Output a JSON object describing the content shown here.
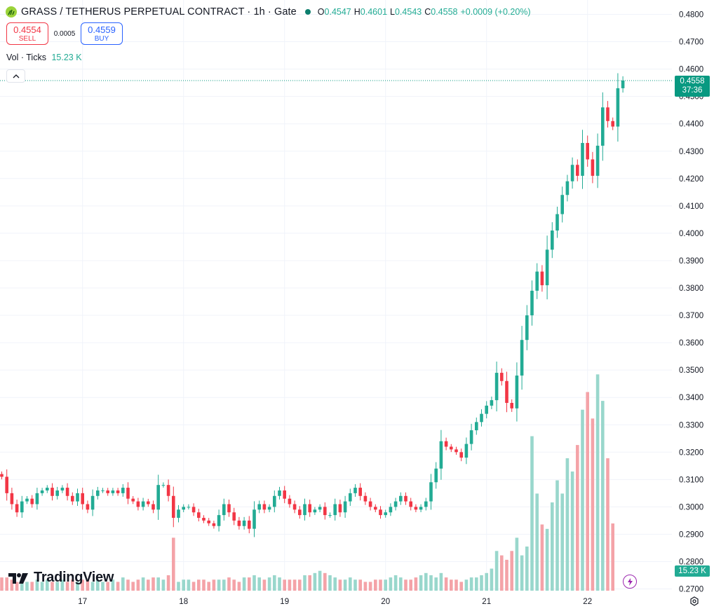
{
  "header": {
    "title": "GRASS / TETHERUS PERPETUAL CONTRACT · 1h · Gate",
    "ohlc": [
      {
        "k": "O",
        "v": "0.4547"
      },
      {
        "k": "H",
        "v": "0.4601"
      },
      {
        "k": "L",
        "v": "0.4543"
      },
      {
        "k": "C",
        "v": "0.4558"
      }
    ],
    "change": "+0.0009 (+0.20%)"
  },
  "trade": {
    "sell_price": "0.4554",
    "sell_label": "SELL",
    "spread": "0.0005",
    "buy_price": "0.4559",
    "buy_label": "BUY"
  },
  "volume": {
    "label": "Vol · Ticks",
    "value": "15.23 K"
  },
  "last_price": {
    "price": "0.4558",
    "countdown": "37:36"
  },
  "logo_text": "TradingView",
  "colors": {
    "up": "#22ab94",
    "down": "#f23645",
    "vol_up": "#99d7cc",
    "vol_down": "#f4a3a8",
    "accent": "#089981"
  },
  "icons": {
    "symbol": "grass-leaf-icon",
    "collapse": "chevron-up-icon",
    "bolt": "lightning-icon",
    "settings": "gear-icon"
  },
  "chart_data": {
    "type": "candlestick",
    "interval": "1h",
    "y_ticks": [
      "0.4800",
      "0.4700",
      "0.4600",
      "0.4500",
      "0.4400",
      "0.4300",
      "0.4200",
      "0.4100",
      "0.4000",
      "0.3900",
      "0.3800",
      "0.3700",
      "0.3600",
      "0.3500",
      "0.3400",
      "0.3300",
      "0.3200",
      "0.3100",
      "0.3000",
      "0.2900",
      "0.2800",
      "0.2700"
    ],
    "ylim": [
      0.27,
      0.48
    ],
    "x_ticks": [
      {
        "label": "17",
        "bar": 16
      },
      {
        "label": "18",
        "bar": 36
      },
      {
        "label": "19",
        "bar": 56
      },
      {
        "label": "20",
        "bar": 76
      },
      {
        "label": "21",
        "bar": 96
      },
      {
        "label": "22",
        "bar": 116
      }
    ],
    "grid": true,
    "closes": [
      0.311,
      0.305,
      0.301,
      0.298,
      0.302,
      0.303,
      0.301,
      0.305,
      0.306,
      0.307,
      0.304,
      0.306,
      0.307,
      0.304,
      0.302,
      0.305,
      0.301,
      0.299,
      0.304,
      0.306,
      0.306,
      0.305,
      0.306,
      0.305,
      0.307,
      0.303,
      0.302,
      0.3,
      0.302,
      0.301,
      0.299,
      0.308,
      0.308,
      0.304,
      0.296,
      0.299,
      0.3,
      0.3,
      0.298,
      0.296,
      0.295,
      0.294,
      0.293,
      0.297,
      0.301,
      0.298,
      0.295,
      0.293,
      0.295,
      0.292,
      0.299,
      0.301,
      0.299,
      0.3,
      0.304,
      0.306,
      0.303,
      0.301,
      0.299,
      0.297,
      0.301,
      0.298,
      0.299,
      0.3,
      0.297,
      0.297,
      0.301,
      0.298,
      0.302,
      0.305,
      0.307,
      0.304,
      0.302,
      0.3,
      0.299,
      0.297,
      0.298,
      0.3,
      0.302,
      0.304,
      0.302,
      0.3,
      0.299,
      0.3,
      0.302,
      0.309,
      0.314,
      0.324,
      0.322,
      0.321,
      0.32,
      0.318,
      0.323,
      0.328,
      0.331,
      0.334,
      0.337,
      0.339,
      0.349,
      0.346,
      0.338,
      0.336,
      0.348,
      0.361,
      0.37,
      0.379,
      0.386,
      0.381,
      0.394,
      0.401,
      0.407,
      0.414,
      0.419,
      0.425,
      0.421,
      0.433,
      0.427,
      0.421,
      0.432,
      0.446,
      0.441,
      0.439,
      0.453,
      0.4558
    ],
    "volumes_k": [
      3,
      3,
      2.5,
      2,
      2.5,
      2,
      2,
      2.5,
      2,
      2.5,
      2,
      2,
      2.5,
      2,
      2.5,
      2,
      2.5,
      2.5,
      2,
      2.5,
      2,
      2,
      2.5,
      2,
      3,
      2.5,
      2,
      2.5,
      3,
      2.5,
      3,
      3,
      2.5,
      3.5,
      12,
      2,
      2.5,
      2.5,
      2,
      2.5,
      2.5,
      2,
      2.5,
      2.5,
      2.5,
      3,
      2.5,
      2,
      3,
      3,
      3.5,
      3,
      2.5,
      3,
      3.5,
      3,
      2.5,
      2.5,
      2.5,
      2.5,
      3.5,
      3.5,
      4,
      4.5,
      4,
      3.5,
      3,
      2.5,
      2.5,
      3,
      2.5,
      2.5,
      2,
      2,
      2.5,
      2.5,
      2.5,
      3,
      3.5,
      3,
      2.5,
      2.5,
      3,
      3.5,
      4,
      3.5,
      3,
      4,
      3,
      2.5,
      2.5,
      2,
      2.5,
      3,
      3,
      3.5,
      4,
      5,
      9,
      8,
      7,
      9,
      12,
      8,
      10,
      35,
      22,
      15,
      14,
      20,
      25,
      22,
      30,
      27,
      33,
      41,
      45,
      39,
      49,
      43,
      30,
      15.23
    ]
  }
}
